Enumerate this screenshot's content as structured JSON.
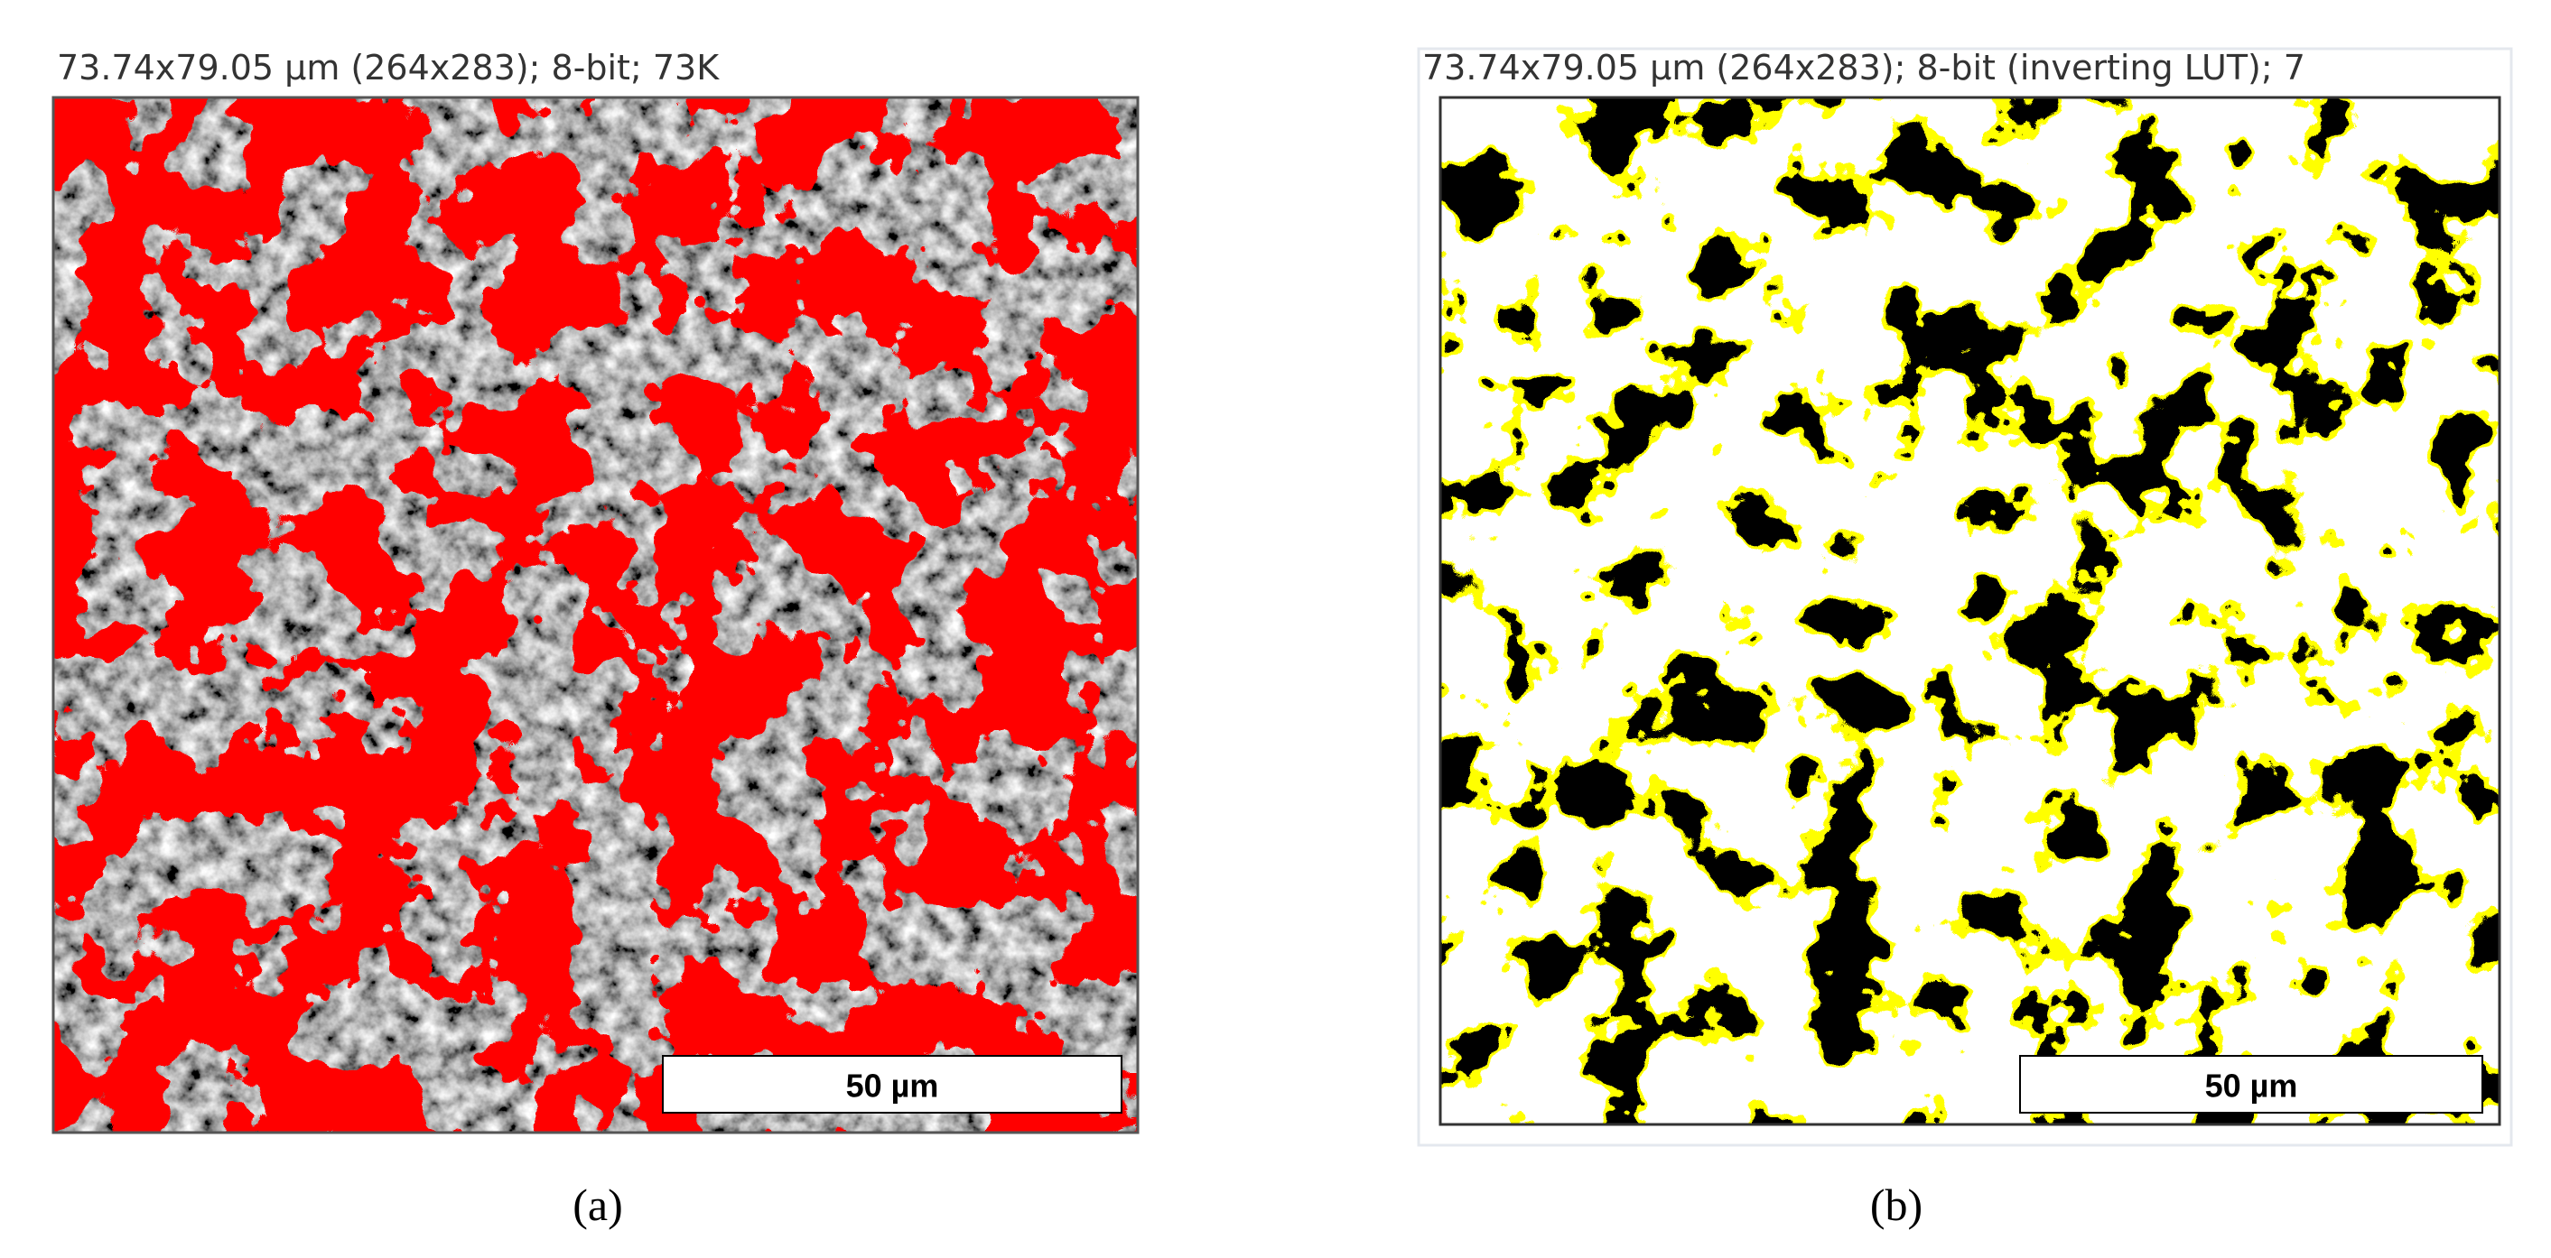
{
  "panels": [
    {
      "header": "73.74x79.05 µm (264x283); 8-bit; 73K",
      "scale_bar": "50 µm",
      "caption": "(a)"
    },
    {
      "header": "73.74x79.05 µm (264x283); 8-bit (inverting LUT); 7",
      "scale_bar": "50 µm",
      "caption": "(b)"
    }
  ]
}
